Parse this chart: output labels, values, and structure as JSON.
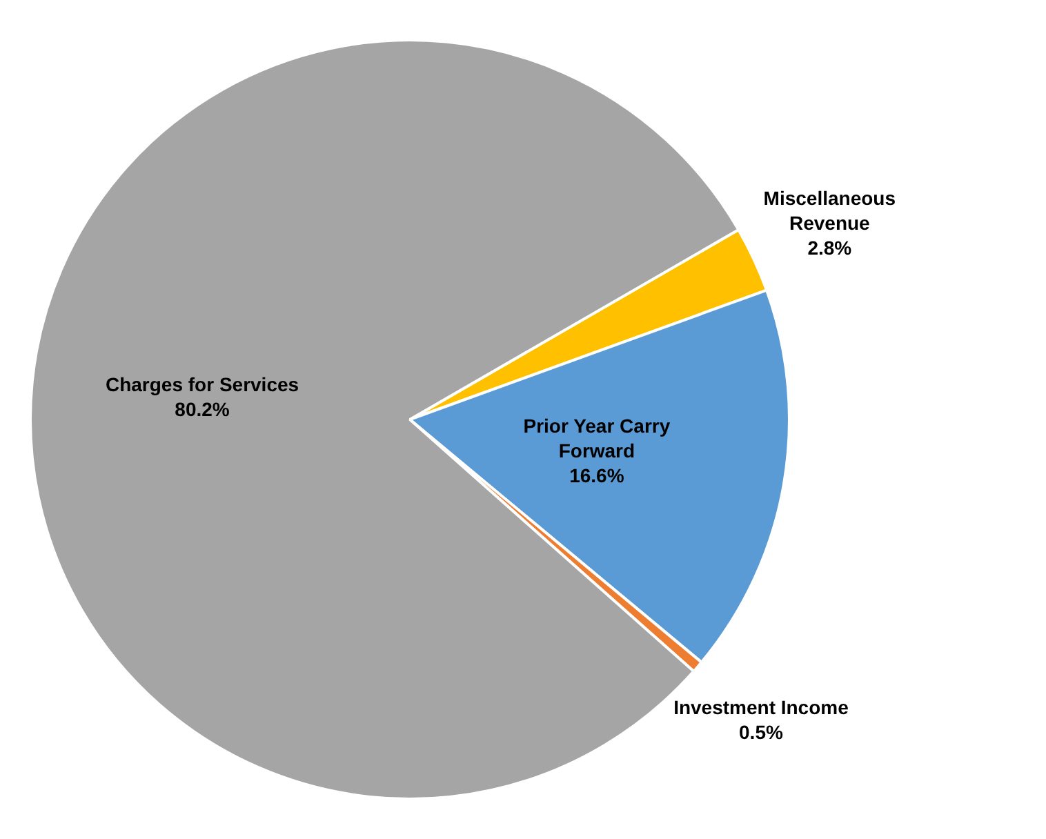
{
  "chart_data": {
    "type": "pie",
    "categories": [
      "Miscellaneous Revenue",
      "Prior Year Carry Forward",
      "Investment Income",
      "Charges for Services"
    ],
    "values": [
      2.8,
      16.6,
      0.5,
      80.2
    ],
    "value_labels": [
      "2.8%",
      "16.6%",
      "0.5%",
      "80.2%"
    ],
    "colors": [
      "#ffc000",
      "#5b9bd5",
      "#ed7d31",
      "#a5a5a5"
    ],
    "legend": false
  }
}
